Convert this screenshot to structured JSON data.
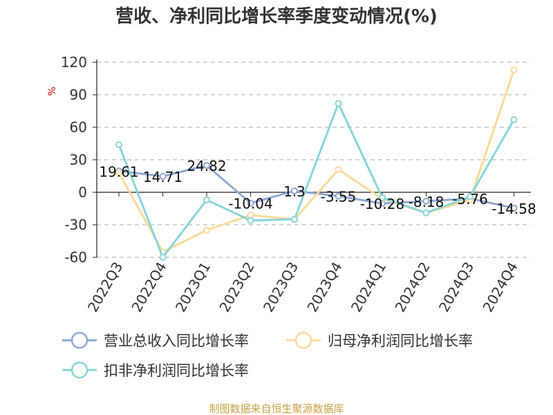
{
  "source_text": "制图数据来自恒生聚源数据库",
  "colors": {
    "grid": "#bbbbbb",
    "axis": "#222222",
    "unit": "#cc0000",
    "source": "#c8a042"
  },
  "chart_data": {
    "type": "line",
    "title": "营收、净利同比增长率季度变动情况(%)",
    "ylabel": "%",
    "xlabel": "",
    "ylim": [
      -60,
      120
    ],
    "yticks": [
      120,
      90,
      60,
      30,
      0,
      -30,
      -60
    ],
    "grid": "horizontal dashed",
    "legend_position": "bottom",
    "categories": [
      "2022Q3",
      "2022Q4",
      "2023Q1",
      "2023Q2",
      "2023Q3",
      "2023Q4",
      "2024Q1",
      "2024Q2",
      "2024Q3",
      "2024Q4"
    ],
    "series": [
      {
        "name": "营业总收入同比增长率",
        "color": "#8fa9d6",
        "values": [
          19.61,
          14.71,
          24.82,
          -10.04,
          1.3,
          -3.55,
          -10.28,
          -8.18,
          -5.76,
          -14.58
        ],
        "data_labels": [
          "19.61",
          "14.71",
          "24.82",
          "-10.04",
          "1.3",
          "-3.55",
          "-10.28",
          "-8.18",
          "-5.76",
          "-14.58"
        ]
      },
      {
        "name": "归母净利润同比增长率",
        "color": "#fcd99a",
        "values": [
          18,
          -55,
          -35,
          -21,
          -25,
          21,
          -6,
          -19,
          -7,
          113
        ]
      },
      {
        "name": "扣非净利润同比增长率",
        "color": "#88d6d8",
        "values": [
          44,
          -60,
          -7,
          -26,
          -25,
          82,
          -5,
          -19,
          -4,
          67
        ]
      }
    ]
  }
}
